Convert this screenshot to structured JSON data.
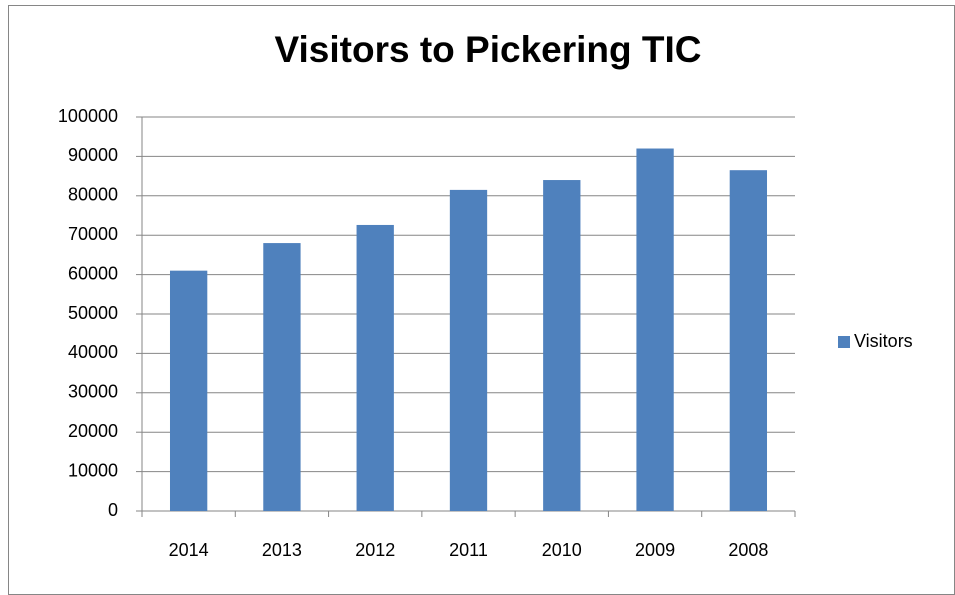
{
  "chart_data": {
    "type": "bar",
    "title": "Visitors to Pickering TIC",
    "categories": [
      "2014",
      "2013",
      "2012",
      "2011",
      "2010",
      "2009",
      "2008"
    ],
    "series": [
      {
        "name": "Visitors",
        "color": "#4f81bd",
        "values": [
          61000,
          68000,
          72600,
          81500,
          84000,
          92000,
          86500
        ]
      }
    ],
    "ylim": [
      0,
      100000
    ],
    "yticks": [
      0,
      10000,
      20000,
      30000,
      40000,
      50000,
      60000,
      70000,
      80000,
      90000,
      100000
    ],
    "grid": true,
    "legend": "right"
  }
}
